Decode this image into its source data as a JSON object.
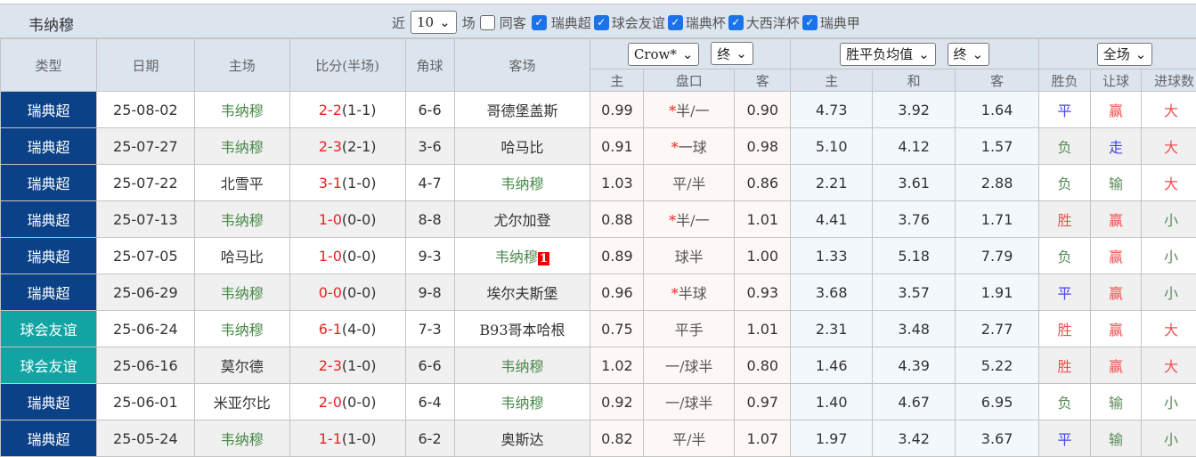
{
  "header": {
    "team": "韦纳穆",
    "near_label": "近",
    "count": "10",
    "games_label": "场",
    "same_away_label": "同客",
    "leagues": [
      {
        "label": "瑞典超",
        "checked": true
      },
      {
        "label": "球会友谊",
        "checked": true
      },
      {
        "label": "瑞典杯",
        "checked": true
      },
      {
        "label": "大西洋杯",
        "checked": true
      },
      {
        "label": "瑞典甲",
        "checked": true
      }
    ]
  },
  "columns": {
    "type": "类型",
    "date": "日期",
    "home": "主场",
    "score": "比分(半场)",
    "corner": "角球",
    "away": "客场",
    "asia_company": "Crow*",
    "asia_stage": "终",
    "eu_type": "胜平负均值",
    "eu_stage": "终",
    "scope": "全场",
    "asia_home": "主",
    "handicap": "盘口",
    "asia_away": "客",
    "eu_home": "主",
    "eu_draw": "和",
    "eu_away": "客",
    "result": "胜负",
    "hc_result": "让球",
    "goals": "进球数"
  },
  "colors": {
    "league": "#0b4186",
    "friendly": "#12a3a3",
    "win": "#f05050",
    "lose": "#5a8a5a",
    "draw": "#4444ee"
  },
  "rows": [
    {
      "type": "瑞典超",
      "date": "25-08-02",
      "home": "韦纳穆",
      "score": "2-2",
      "half": "(1-1)",
      "corner": "6-6",
      "away": "哥德堡盖斯",
      "ah": "0.99",
      "star": "*",
      "hc": "半/一",
      "aa": "0.90",
      "eh": "4.73",
      "ed": "3.92",
      "ea": "1.64",
      "r": "平",
      "h": "赢",
      "g": "大"
    },
    {
      "type": "瑞典超",
      "date": "25-07-27",
      "home": "韦纳穆",
      "score": "2-3",
      "half": "(2-1)",
      "corner": "3-6",
      "away": "哈马比",
      "ah": "0.91",
      "star": "*",
      "hc": "一球",
      "aa": "0.98",
      "eh": "5.10",
      "ed": "4.12",
      "ea": "1.57",
      "r": "负",
      "h": "走",
      "g": "大"
    },
    {
      "type": "瑞典超",
      "date": "25-07-22",
      "home": "北雪平",
      "score": "3-1",
      "half": "(1-0)",
      "corner": "4-7",
      "away": "韦纳穆",
      "ah": "1.03",
      "star": "",
      "hc": "平/半",
      "aa": "0.86",
      "eh": "2.21",
      "ed": "3.61",
      "ea": "2.88",
      "r": "负",
      "h": "输",
      "g": "大"
    },
    {
      "type": "瑞典超",
      "date": "25-07-13",
      "home": "韦纳穆",
      "score": "1-0",
      "half": "(0-0)",
      "corner": "8-8",
      "away": "尤尔加登",
      "ah": "0.88",
      "star": "*",
      "hc": "半/一",
      "aa": "1.01",
      "eh": "4.41",
      "ed": "3.76",
      "ea": "1.71",
      "r": "胜",
      "h": "赢",
      "g": "小"
    },
    {
      "type": "瑞典超",
      "date": "25-07-05",
      "home": "哈马比",
      "score": "1-0",
      "half": "(0-0)",
      "corner": "9-3",
      "away": "韦纳穆",
      "badge": "1",
      "ah": "0.89",
      "star": "",
      "hc": "球半",
      "aa": "1.00",
      "eh": "1.33",
      "ed": "5.18",
      "ea": "7.79",
      "r": "负",
      "h": "赢",
      "g": "小"
    },
    {
      "type": "瑞典超",
      "date": "25-06-29",
      "home": "韦纳穆",
      "score": "0-0",
      "half": "(0-0)",
      "corner": "9-8",
      "away": "埃尔夫斯堡",
      "ah": "0.96",
      "star": "*",
      "hc": "半球",
      "aa": "0.93",
      "eh": "3.68",
      "ed": "3.57",
      "ea": "1.91",
      "r": "平",
      "h": "赢",
      "g": "小"
    },
    {
      "type": "球会友谊",
      "date": "25-06-24",
      "home": "韦纳穆",
      "score": "6-1",
      "half": "(4-0)",
      "corner": "7-3",
      "away": "B93哥本哈根",
      "ah": "0.75",
      "star": "",
      "hc": "平手",
      "aa": "1.01",
      "eh": "2.31",
      "ed": "3.48",
      "ea": "2.77",
      "r": "胜",
      "h": "赢",
      "g": "大"
    },
    {
      "type": "球会友谊",
      "date": "25-06-16",
      "home": "莫尔德",
      "score": "2-3",
      "half": "(1-0)",
      "corner": "6-6",
      "away": "韦纳穆",
      "ah": "1.02",
      "star": "",
      "hc": "一/球半",
      "aa": "0.80",
      "eh": "1.46",
      "ed": "4.39",
      "ea": "5.22",
      "r": "胜",
      "h": "赢",
      "g": "大"
    },
    {
      "type": "瑞典超",
      "date": "25-06-01",
      "home": "米亚尔比",
      "score": "2-0",
      "half": "(0-0)",
      "corner": "6-4",
      "away": "韦纳穆",
      "ah": "0.92",
      "star": "",
      "hc": "一/球半",
      "aa": "0.97",
      "eh": "1.40",
      "ed": "4.67",
      "ea": "6.95",
      "r": "负",
      "h": "输",
      "g": "小"
    },
    {
      "type": "瑞典超",
      "date": "25-05-24",
      "home": "韦纳穆",
      "score": "1-1",
      "half": "(1-0)",
      "corner": "6-2",
      "away": "奥斯达",
      "ah": "0.82",
      "star": "",
      "hc": "平/半",
      "aa": "1.07",
      "eh": "1.97",
      "ed": "3.42",
      "ea": "3.67",
      "r": "平",
      "h": "输",
      "g": "小"
    }
  ]
}
